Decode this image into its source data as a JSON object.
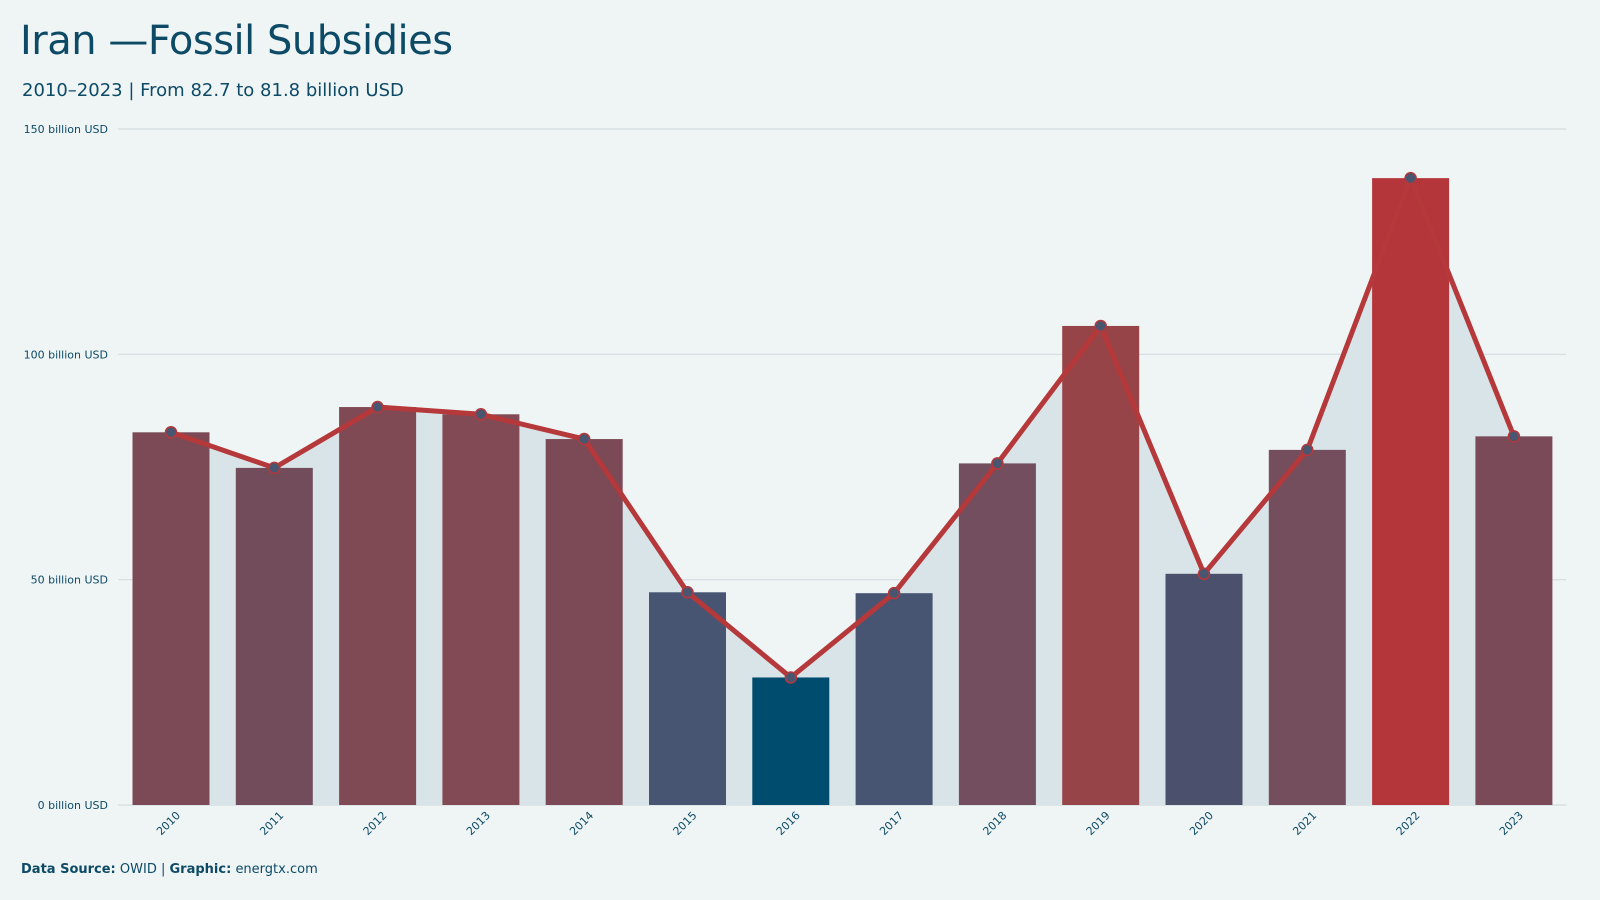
{
  "title": "Iran —Fossil Subsidies",
  "subtitle": "2010–2023 | From 82.7 to 81.8 billion USD",
  "footer": {
    "source_label": "Data Source:",
    "source_value": "OWID",
    "separator": "|",
    "graphic_label": "Graphic:",
    "graphic_value": "energtx.com"
  },
  "colors": {
    "background": "#eff5f5",
    "area": "#d8e4e8",
    "line": "#b5383a",
    "marker": "#4a5670",
    "text": "#0d4a66",
    "grid": "#d2dcdf"
  },
  "chart_data": {
    "type": "bar",
    "categories": [
      "2010",
      "2011",
      "2012",
      "2013",
      "2014",
      "2015",
      "2016",
      "2017",
      "2018",
      "2019",
      "2020",
      "2021",
      "2022",
      "2023"
    ],
    "values": [
      82.7,
      74.8,
      88.3,
      86.7,
      81.2,
      47.2,
      28.3,
      47.0,
      75.8,
      106.3,
      51.3,
      78.8,
      139.1,
      81.8
    ],
    "bar_colors": [
      "#7b4a56",
      "#724c5b",
      "#804a55",
      "#824a54",
      "#7b4a56",
      "#475573",
      "#004c6e",
      "#475573",
      "#724e5e",
      "#974449",
      "#4b506c",
      "#744e5c",
      "#b5363a",
      "#7a4a58"
    ],
    "overlay": "line with markers and shaded area",
    "ylim": [
      0,
      150
    ],
    "yticks": [
      0,
      50,
      100,
      150
    ],
    "ytick_labels": [
      "0 billion USD",
      "50 billion USD",
      "100 billion USD",
      "150 billion USD"
    ],
    "xlabel": "",
    "ylabel": "",
    "grid": true
  }
}
